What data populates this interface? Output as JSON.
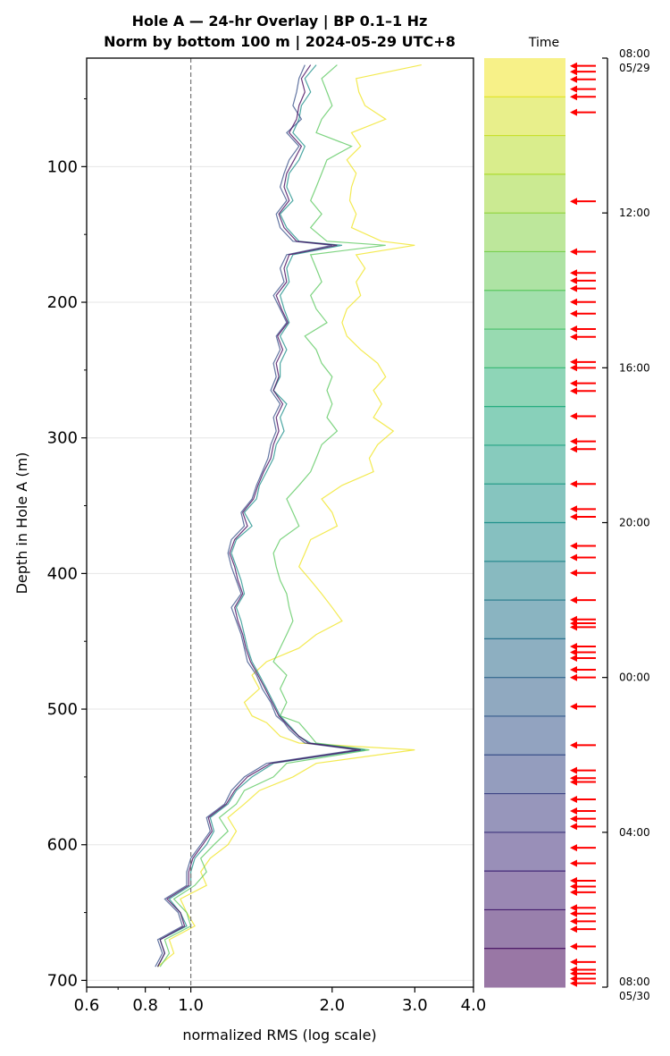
{
  "chart_data": {
    "type": "line",
    "title": "Hole A — 24-hr Overlay  |  BP 0.1–1 Hz",
    "subtitle": "Norm by bottom 100 m  |  2024-05-29 UTC+8",
    "xlabel": "normalized RMS  (log scale)",
    "ylabel": "Depth in Hole A (m)",
    "x_scale": "log",
    "xlim": [
      0.6,
      4.0
    ],
    "ylim": [
      705,
      20
    ],
    "x_ticks": [
      0.6,
      0.8,
      1.0,
      2.0,
      3.0,
      4.0
    ],
    "x_tick_labels": [
      "0.6",
      "0.8",
      "1.0",
      "2.0",
      "3.0",
      "4.0"
    ],
    "y_ticks": [
      100,
      200,
      300,
      400,
      500,
      600,
      700
    ],
    "y_tick_labels": [
      "100",
      "200",
      "300",
      "400",
      "500",
      "600",
      "700"
    ],
    "reference_line_x": 1.0,
    "grid": "horizontal at major y ticks",
    "colormap_title": "Time",
    "colormap": [
      "#440154",
      "#472d7b",
      "#3b528b",
      "#2c728e",
      "#21918c",
      "#28ae80",
      "#5ec962",
      "#addc30",
      "#fde725"
    ],
    "colorbar_top_label": "08:00",
    "colorbar_top_date": "05/29",
    "colorbar_bottom_label": "08:00",
    "colorbar_bottom_date": "05/30",
    "colorbar_ticks": [
      "08:00",
      "12:00",
      "16:00",
      "20:00",
      "00:00",
      "04:00",
      "08:00"
    ],
    "colorbar_tick_hours": [
      0,
      4,
      8,
      12,
      16,
      20,
      24
    ],
    "arrow_hours": [
      0.2,
      0.35,
      0.55,
      0.8,
      1.0,
      1.4,
      3.7,
      5.0,
      5.55,
      5.75,
      5.95,
      6.3,
      6.6,
      7.0,
      7.2,
      7.85,
      8.0,
      8.4,
      8.6,
      9.25,
      9.9,
      10.1,
      11.0,
      11.65,
      11.85,
      12.6,
      12.9,
      13.3,
      14.0,
      14.5,
      14.6,
      14.7,
      15.2,
      15.35,
      15.5,
      15.8,
      16.0,
      16.75,
      17.75,
      18.4,
      18.6,
      18.7,
      19.15,
      19.45,
      19.65,
      19.85,
      20.4,
      20.8,
      21.25,
      21.4,
      21.55,
      21.95,
      22.1,
      22.3,
      22.5,
      22.95,
      23.35,
      23.55,
      23.65,
      23.78,
      23.9
    ]
  },
  "series": [
    {
      "hour": 0.5,
      "x": [
        3.1,
        2.25,
        2.28,
        2.35,
        2.6,
        2.2,
        2.3,
        2.15,
        2.25,
        2.2,
        2.18,
        2.25,
        2.2,
        2.55,
        3.0,
        2.25,
        2.35,
        2.25,
        2.3,
        2.15,
        2.1,
        2.15,
        2.3,
        2.5,
        2.6,
        2.45,
        2.55,
        2.45,
        2.7,
        2.5,
        2.4,
        2.45,
        2.1,
        1.9,
        2.0,
        2.05,
        1.8,
        1.75,
        1.7,
        1.8,
        1.9,
        2.0,
        2.1,
        1.85,
        1.7,
        1.45,
        1.35,
        1.4,
        1.3,
        1.35,
        1.45,
        1.5,
        1.55,
        1.7,
        3.0,
        1.85,
        1.65,
        1.4,
        1.3,
        1.2,
        1.25,
        1.2,
        1.1,
        1.05,
        1.08,
        0.95,
        0.98,
        1.02,
        0.9,
        0.92,
        0.85
      ]
    },
    {
      "hour": 6.0,
      "x": [
        2.05,
        1.9,
        1.95,
        2.0,
        1.9,
        1.85,
        2.2,
        1.95,
        1.9,
        1.85,
        1.8,
        1.9,
        1.8,
        1.95,
        2.6,
        1.8,
        1.85,
        1.9,
        1.8,
        1.85,
        1.95,
        1.75,
        1.85,
        1.9,
        2.0,
        1.95,
        2.0,
        1.95,
        2.05,
        1.9,
        1.85,
        1.8,
        1.7,
        1.6,
        1.65,
        1.7,
        1.55,
        1.5,
        1.52,
        1.55,
        1.6,
        1.62,
        1.65,
        1.6,
        1.55,
        1.5,
        1.6,
        1.55,
        1.6,
        1.55,
        1.7,
        1.75,
        1.8,
        1.85,
        2.4,
        1.6,
        1.5,
        1.3,
        1.25,
        1.15,
        1.2,
        1.12,
        1.05,
        1.08,
        1.02,
        0.92,
        0.98,
        1.0,
        0.88,
        0.9,
        0.86
      ]
    },
    {
      "hour": 12.0,
      "x": [
        1.85,
        1.75,
        1.8,
        1.72,
        1.7,
        1.65,
        1.75,
        1.7,
        1.62,
        1.6,
        1.65,
        1.55,
        1.6,
        1.7,
        2.1,
        1.65,
        1.6,
        1.62,
        1.55,
        1.58,
        1.62,
        1.55,
        1.6,
        1.55,
        1.55,
        1.5,
        1.6,
        1.55,
        1.58,
        1.52,
        1.5,
        1.45,
        1.4,
        1.38,
        1.3,
        1.35,
        1.25,
        1.22,
        1.25,
        1.28,
        1.3,
        1.25,
        1.28,
        1.3,
        1.32,
        1.35,
        1.4,
        1.45,
        1.5,
        1.55,
        1.6,
        1.65,
        1.7,
        1.8,
        2.35,
        1.5,
        1.35,
        1.25,
        1.2,
        1.1,
        1.12,
        1.08,
        1.02,
        1.0,
        1.0,
        0.9,
        0.95,
        0.98,
        0.86,
        0.88,
        0.85
      ]
    },
    {
      "hour": 18.0,
      "x": [
        1.75,
        1.7,
        1.68,
        1.65,
        1.72,
        1.6,
        1.7,
        1.62,
        1.58,
        1.55,
        1.6,
        1.52,
        1.55,
        1.65,
        2.0,
        1.6,
        1.55,
        1.58,
        1.5,
        1.55,
        1.6,
        1.52,
        1.55,
        1.5,
        1.52,
        1.48,
        1.55,
        1.5,
        1.52,
        1.48,
        1.46,
        1.42,
        1.38,
        1.35,
        1.28,
        1.3,
        1.22,
        1.2,
        1.22,
        1.25,
        1.28,
        1.22,
        1.25,
        1.28,
        1.3,
        1.32,
        1.38,
        1.42,
        1.48,
        1.52,
        1.58,
        1.62,
        1.68,
        1.75,
        2.25,
        1.45,
        1.3,
        1.22,
        1.18,
        1.08,
        1.1,
        1.05,
        1.0,
        0.98,
        0.98,
        0.88,
        0.94,
        0.96,
        0.85,
        0.87,
        0.84
      ]
    },
    {
      "hour": 23.5,
      "x": [
        1.8,
        1.72,
        1.75,
        1.7,
        1.68,
        1.62,
        1.72,
        1.66,
        1.6,
        1.58,
        1.62,
        1.54,
        1.58,
        1.68,
        2.05,
        1.62,
        1.58,
        1.6,
        1.52,
        1.56,
        1.61,
        1.53,
        1.57,
        1.52,
        1.54,
        1.5,
        1.57,
        1.52,
        1.54,
        1.5,
        1.48,
        1.43,
        1.39,
        1.36,
        1.29,
        1.32,
        1.24,
        1.21,
        1.24,
        1.26,
        1.29,
        1.24,
        1.26,
        1.29,
        1.31,
        1.34,
        1.39,
        1.44,
        1.49,
        1.54,
        1.59,
        1.64,
        1.7,
        1.78,
        2.3,
        1.48,
        1.32,
        1.24,
        1.19,
        1.09,
        1.11,
        1.06,
        1.01,
        0.99,
        0.99,
        0.89,
        0.95,
        0.97,
        0.86,
        0.88,
        0.85
      ]
    }
  ],
  "series_depths": [
    25,
    35,
    45,
    55,
    65,
    75,
    85,
    95,
    105,
    115,
    125,
    135,
    145,
    155,
    158,
    165,
    175,
    185,
    195,
    205,
    215,
    225,
    235,
    245,
    255,
    265,
    275,
    285,
    295,
    305,
    315,
    325,
    335,
    345,
    355,
    365,
    375,
    385,
    395,
    405,
    415,
    425,
    435,
    445,
    455,
    465,
    475,
    485,
    495,
    505,
    510,
    515,
    520,
    525,
    530,
    540,
    550,
    560,
    570,
    580,
    590,
    600,
    610,
    620,
    630,
    640,
    650,
    660,
    670,
    680,
    690
  ]
}
